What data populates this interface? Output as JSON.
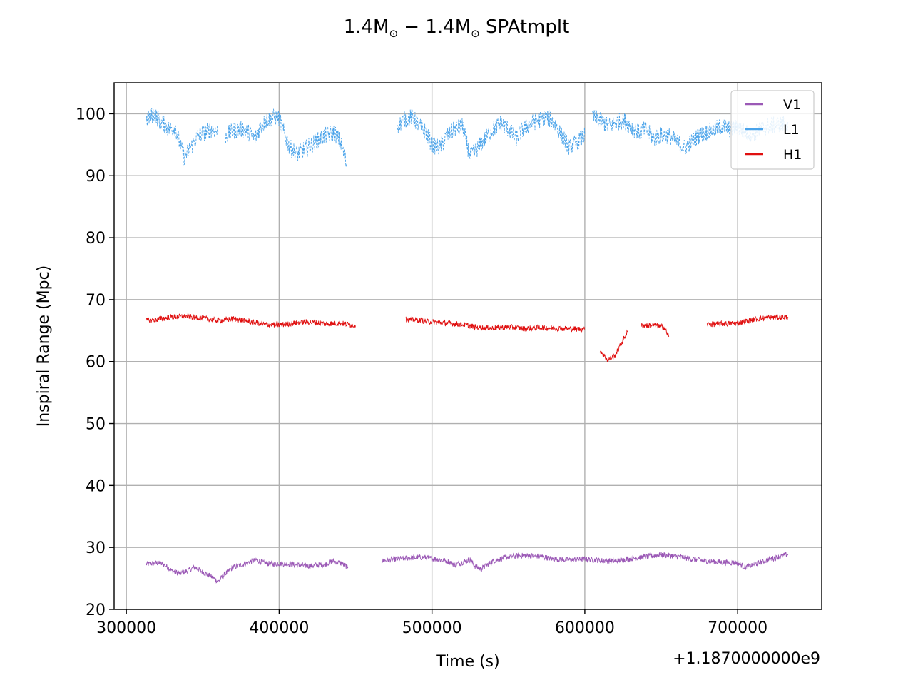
{
  "chart_data": {
    "type": "line",
    "title_main": "1.4M",
    "title_sub": "⊙",
    "title_sep": " − ",
    "title_suffix": " SPAtmplt",
    "xlabel": "Time (s)",
    "ylabel": "Inspiral Range (Mpc)",
    "x_offset_label": "+1.1870000000e9",
    "xlim": [
      292000,
      755000
    ],
    "ylim": [
      20,
      105
    ],
    "xticks": [
      300000,
      400000,
      500000,
      600000,
      700000
    ],
    "xtick_labels": [
      "300000",
      "400000",
      "500000",
      "600000",
      "700000"
    ],
    "yticks": [
      20,
      30,
      40,
      50,
      60,
      70,
      80,
      90,
      100
    ],
    "ytick_labels": [
      "20",
      "30",
      "40",
      "50",
      "60",
      "70",
      "80",
      "90",
      "100"
    ],
    "grid": true,
    "legend_position": "top-right",
    "series": [
      {
        "name": "V1",
        "color": "#9b59b6",
        "segments": [
          [
            [
              313000,
              27.3
            ],
            [
              320000,
              27.5
            ],
            [
              325000,
              27.2
            ],
            [
              330000,
              26.2
            ],
            [
              335000,
              25.8
            ],
            [
              340000,
              26.2
            ],
            [
              345000,
              26.8
            ],
            [
              350000,
              26.0
            ],
            [
              355000,
              25.4
            ],
            [
              360000,
              24.5
            ],
            [
              365000,
              25.8
            ],
            [
              370000,
              26.8
            ],
            [
              375000,
              27.2
            ],
            [
              380000,
              27.6
            ],
            [
              385000,
              28.0
            ],
            [
              390000,
              27.5
            ],
            [
              395000,
              27.3
            ],
            [
              400000,
              27.4
            ],
            [
              410000,
              27.2
            ],
            [
              420000,
              27.0
            ],
            [
              430000,
              27.3
            ],
            [
              435000,
              27.8
            ],
            [
              440000,
              27.5
            ],
            [
              445000,
              26.8
            ]
          ],
          [
            [
              467000,
              27.8
            ],
            [
              475000,
              28.1
            ],
            [
              485000,
              28.3
            ],
            [
              495000,
              28.4
            ],
            [
              505000,
              28.0
            ],
            [
              510000,
              27.8
            ],
            [
              515000,
              27.2
            ],
            [
              520000,
              27.6
            ],
            [
              525000,
              28.0
            ],
            [
              528000,
              27.0
            ],
            [
              532000,
              26.5
            ],
            [
              540000,
              27.8
            ],
            [
              550000,
              28.5
            ],
            [
              560000,
              28.7
            ],
            [
              570000,
              28.6
            ],
            [
              580000,
              28.1
            ],
            [
              590000,
              28.0
            ],
            [
              600000,
              28.1
            ],
            [
              610000,
              27.9
            ],
            [
              620000,
              27.8
            ],
            [
              630000,
              28.2
            ],
            [
              640000,
              28.5
            ],
            [
              650000,
              28.8
            ],
            [
              660000,
              28.6
            ],
            [
              670000,
              28.1
            ],
            [
              680000,
              27.8
            ],
            [
              690000,
              27.6
            ],
            [
              700000,
              27.5
            ],
            [
              705000,
              26.8
            ],
            [
              710000,
              27.2
            ],
            [
              720000,
              28.0
            ],
            [
              733000,
              28.9
            ]
          ]
        ]
      },
      {
        "name": "L1",
        "color": "#4aa3ea",
        "segments": [
          [
            [
              313000,
              99.0
            ],
            [
              318000,
              100.0
            ],
            [
              322000,
              98.8
            ],
            [
              328000,
              97.5
            ],
            [
              332000,
              97.9
            ],
            [
              335000,
              95.0
            ],
            [
              338000,
              93.0
            ],
            [
              342000,
              94.5
            ],
            [
              347000,
              96.5
            ],
            [
              352000,
              97.0
            ],
            [
              356000,
              97.5
            ],
            [
              360000,
              97.0
            ]
          ],
          [
            [
              365000,
              96.5
            ],
            [
              370000,
              97.2
            ],
            [
              375000,
              97.5
            ],
            [
              380000,
              97.0
            ],
            [
              384000,
              96.0
            ],
            [
              388000,
              98.0
            ],
            [
              392000,
              99.0
            ],
            [
              397000,
              99.5
            ],
            [
              400000,
              99.2
            ],
            [
              403000,
              97.0
            ],
            [
              407000,
              94.5
            ],
            [
              412000,
              93.5
            ],
            [
              418000,
              94.5
            ],
            [
              424000,
              95.5
            ],
            [
              430000,
              96.5
            ],
            [
              436000,
              97.0
            ],
            [
              440000,
              95.5
            ],
            [
              444000,
              92.0
            ]
          ],
          [
            [
              477000,
              98.0
            ],
            [
              482000,
              99.0
            ],
            [
              487000,
              99.5
            ],
            [
              492000,
              98.0
            ],
            [
              496000,
              97.0
            ],
            [
              500000,
              95.0
            ],
            [
              505000,
              94.5
            ],
            [
              510000,
              96.5
            ],
            [
              515000,
              97.5
            ],
            [
              520000,
              98.0
            ],
            [
              525000,
              93.0
            ],
            [
              530000,
              94.5
            ],
            [
              535000,
              96.0
            ],
            [
              540000,
              97.5
            ],
            [
              545000,
              98.5
            ],
            [
              550000,
              97.5
            ],
            [
              555000,
              96.0
            ],
            [
              560000,
              97.5
            ],
            [
              565000,
              98.5
            ],
            [
              570000,
              99.0
            ],
            [
              575000,
              99.5
            ],
            [
              580000,
              98.5
            ],
            [
              585000,
              96.5
            ],
            [
              590000,
              94.5
            ],
            [
              595000,
              95.5
            ],
            [
              600000,
              96.5
            ]
          ],
          [
            [
              605000,
              99.5
            ],
            [
              610000,
              99.0
            ],
            [
              615000,
              98.0
            ],
            [
              620000,
              98.5
            ],
            [
              625000,
              99.0
            ],
            [
              630000,
              98.0
            ],
            [
              635000,
              97.0
            ],
            [
              640000,
              97.5
            ],
            [
              645000,
              96.0
            ],
            [
              650000,
              96.5
            ],
            [
              655000,
              96.5
            ],
            [
              660000,
              95.5
            ],
            [
              665000,
              94.5
            ],
            [
              670000,
              95.5
            ],
            [
              675000,
              96.5
            ],
            [
              680000,
              97.0
            ],
            [
              685000,
              97.5
            ],
            [
              690000,
              98.0
            ],
            [
              695000,
              97.5
            ],
            [
              700000,
              97.8
            ],
            [
              705000,
              97.0
            ],
            [
              710000,
              96.8
            ],
            [
              715000,
              97.5
            ],
            [
              720000,
              98.0
            ],
            [
              725000,
              98.2
            ],
            [
              733000,
              98.5
            ]
          ]
        ]
      },
      {
        "name": "H1",
        "color": "#e01010",
        "segments": [
          [
            [
              313000,
              66.6
            ],
            [
              320000,
              66.8
            ],
            [
              330000,
              67.2
            ],
            [
              340000,
              67.3
            ],
            [
              350000,
              67.0
            ],
            [
              360000,
              66.6
            ],
            [
              370000,
              66.9
            ],
            [
              380000,
              66.5
            ],
            [
              390000,
              66.0
            ],
            [
              400000,
              65.9
            ],
            [
              410000,
              66.2
            ],
            [
              420000,
              66.4
            ],
            [
              430000,
              66.1
            ],
            [
              440000,
              66.2
            ],
            [
              450000,
              65.8
            ]
          ],
          [
            [
              483000,
              66.8
            ],
            [
              490000,
              66.7
            ],
            [
              500000,
              66.4
            ],
            [
              510000,
              66.2
            ],
            [
              520000,
              66.0
            ],
            [
              530000,
              65.5
            ],
            [
              540000,
              65.4
            ],
            [
              550000,
              65.6
            ],
            [
              560000,
              65.3
            ],
            [
              570000,
              65.5
            ],
            [
              580000,
              65.4
            ],
            [
              590000,
              65.3
            ],
            [
              600000,
              65.2
            ]
          ],
          [
            [
              610000,
              61.8
            ],
            [
              615000,
              60.2
            ],
            [
              620000,
              61.0
            ],
            [
              625000,
              63.5
            ],
            [
              628000,
              64.8
            ]
          ],
          [
            [
              637000,
              65.8
            ],
            [
              645000,
              65.9
            ],
            [
              652000,
              65.5
            ],
            [
              655000,
              64.0
            ]
          ],
          [
            [
              680000,
              66.0
            ],
            [
              690000,
              66.1
            ],
            [
              700000,
              66.2
            ],
            [
              710000,
              66.8
            ],
            [
              720000,
              67.1
            ],
            [
              733000,
              67.2
            ]
          ]
        ]
      }
    ]
  }
}
